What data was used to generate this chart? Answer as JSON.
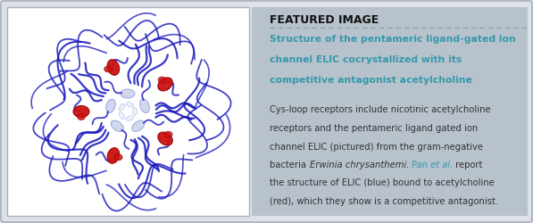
{
  "outer_bg": "#dde2e8",
  "left_panel_bg": "#ffffff",
  "right_panel_bg": "#b8c2cc",
  "featured_label": "FEATURED IMAGE",
  "featured_label_color": "#111111",
  "title_line1": "Structure of the pentameric ligand-gated ion",
  "title_line2": "channel ELIC cocrystallized with its",
  "title_line3": "competitive antagonist acetylcholine",
  "title_color": "#3399aa",
  "body_line1": "Cys-loop receptors include nicotinic acetylcholine",
  "body_line2": "receptors and the pentameric ligand gated ion",
  "body_line3": "channel ELIC (pictured) from the gram-negative",
  "body_line4a": "bacteria ",
  "body_line4b": "Erwinia chrysanthemi.",
  "body_line4c": " ",
  "body_line4d": "Pan ",
  "body_line4e": "et al.",
  "body_line4f": " report",
  "body_line5": "the structure of ELIC (blue) bound to acetylcholine",
  "body_line6": "(red), which they show is a competitive antagonist.",
  "body_color": "#333333",
  "teal_color": "#3399aa",
  "protein_color": "#1515bb",
  "protein_color_light": "#5555cc",
  "ligand_color": "#cc1111",
  "divider_color": "#8899aa",
  "border_color": "#aab0bb"
}
